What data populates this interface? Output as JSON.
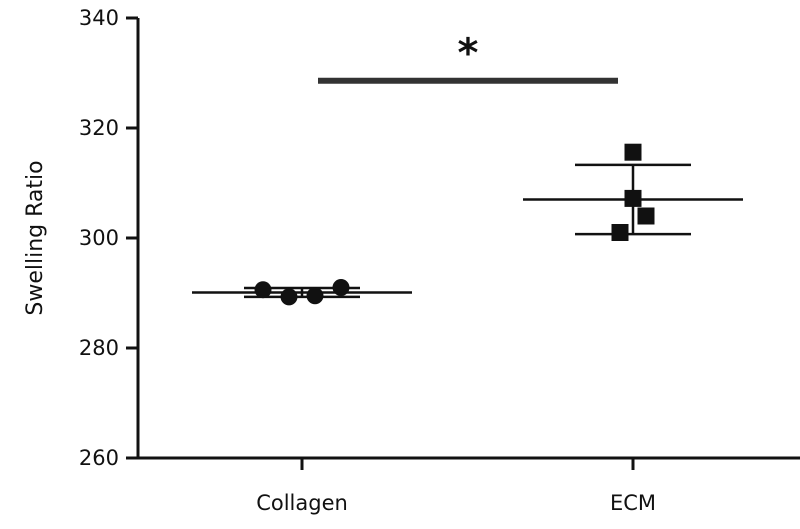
{
  "chart_data": {
    "type": "scatter",
    "title": "",
    "xlabel": "",
    "ylabel": "Swelling Ratio",
    "ylim": [
      260,
      340
    ],
    "y_ticks": [
      260,
      280,
      300,
      320,
      340
    ],
    "categories": [
      "Collagen",
      "ECM"
    ],
    "grid": false,
    "legend": "none",
    "series": [
      {
        "category": "Collagen",
        "marker": "circle",
        "color": "#111111",
        "points": [
          290.6,
          289.3,
          289.5,
          291.0
        ],
        "mean": 290.1,
        "sd": 0.8
      },
      {
        "category": "ECM",
        "marker": "square",
        "color": "#111111",
        "points": [
          315.6,
          307.2,
          304.0,
          301.0
        ],
        "mean": 307.0,
        "sd": 6.3
      }
    ],
    "significance": {
      "label": "*",
      "between": [
        "Collagen",
        "ECM"
      ],
      "y_value": 328.6
    }
  }
}
